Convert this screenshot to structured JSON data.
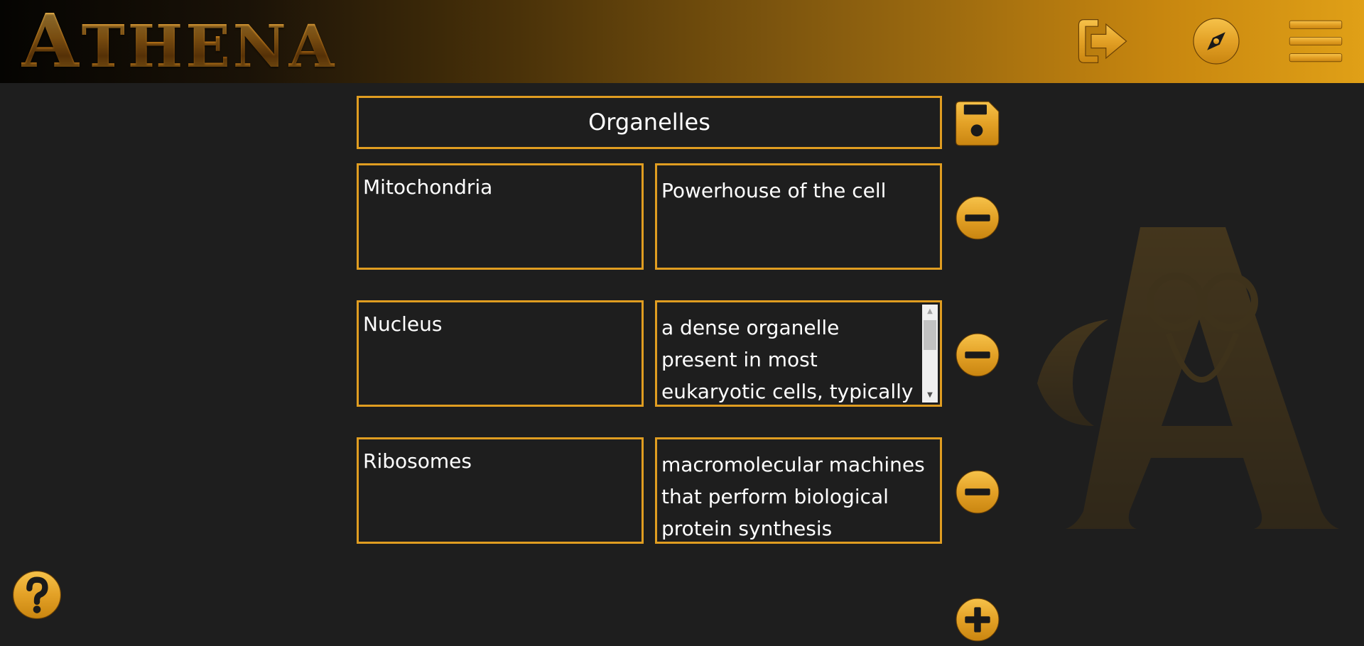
{
  "app": {
    "logo_first": "A",
    "logo_rest": "THENA"
  },
  "header": {
    "icons": [
      "logout-icon",
      "compass-icon",
      "hamburger-menu-icon"
    ]
  },
  "deck": {
    "title": "Organelles",
    "cards": [
      {
        "term": "Mitochondria",
        "definition": "Powerhouse of the cell"
      },
      {
        "term": "Nucleus",
        "definition": "a dense organelle present in most eukaryotic cells, typically a single rounded"
      },
      {
        "term": "Ribosomes",
        "definition": "macromolecular machines that perform biological protein synthesis"
      }
    ]
  },
  "colors": {
    "accent": "#e09d21",
    "background": "#1e1e1e",
    "text": "#ffffff"
  }
}
